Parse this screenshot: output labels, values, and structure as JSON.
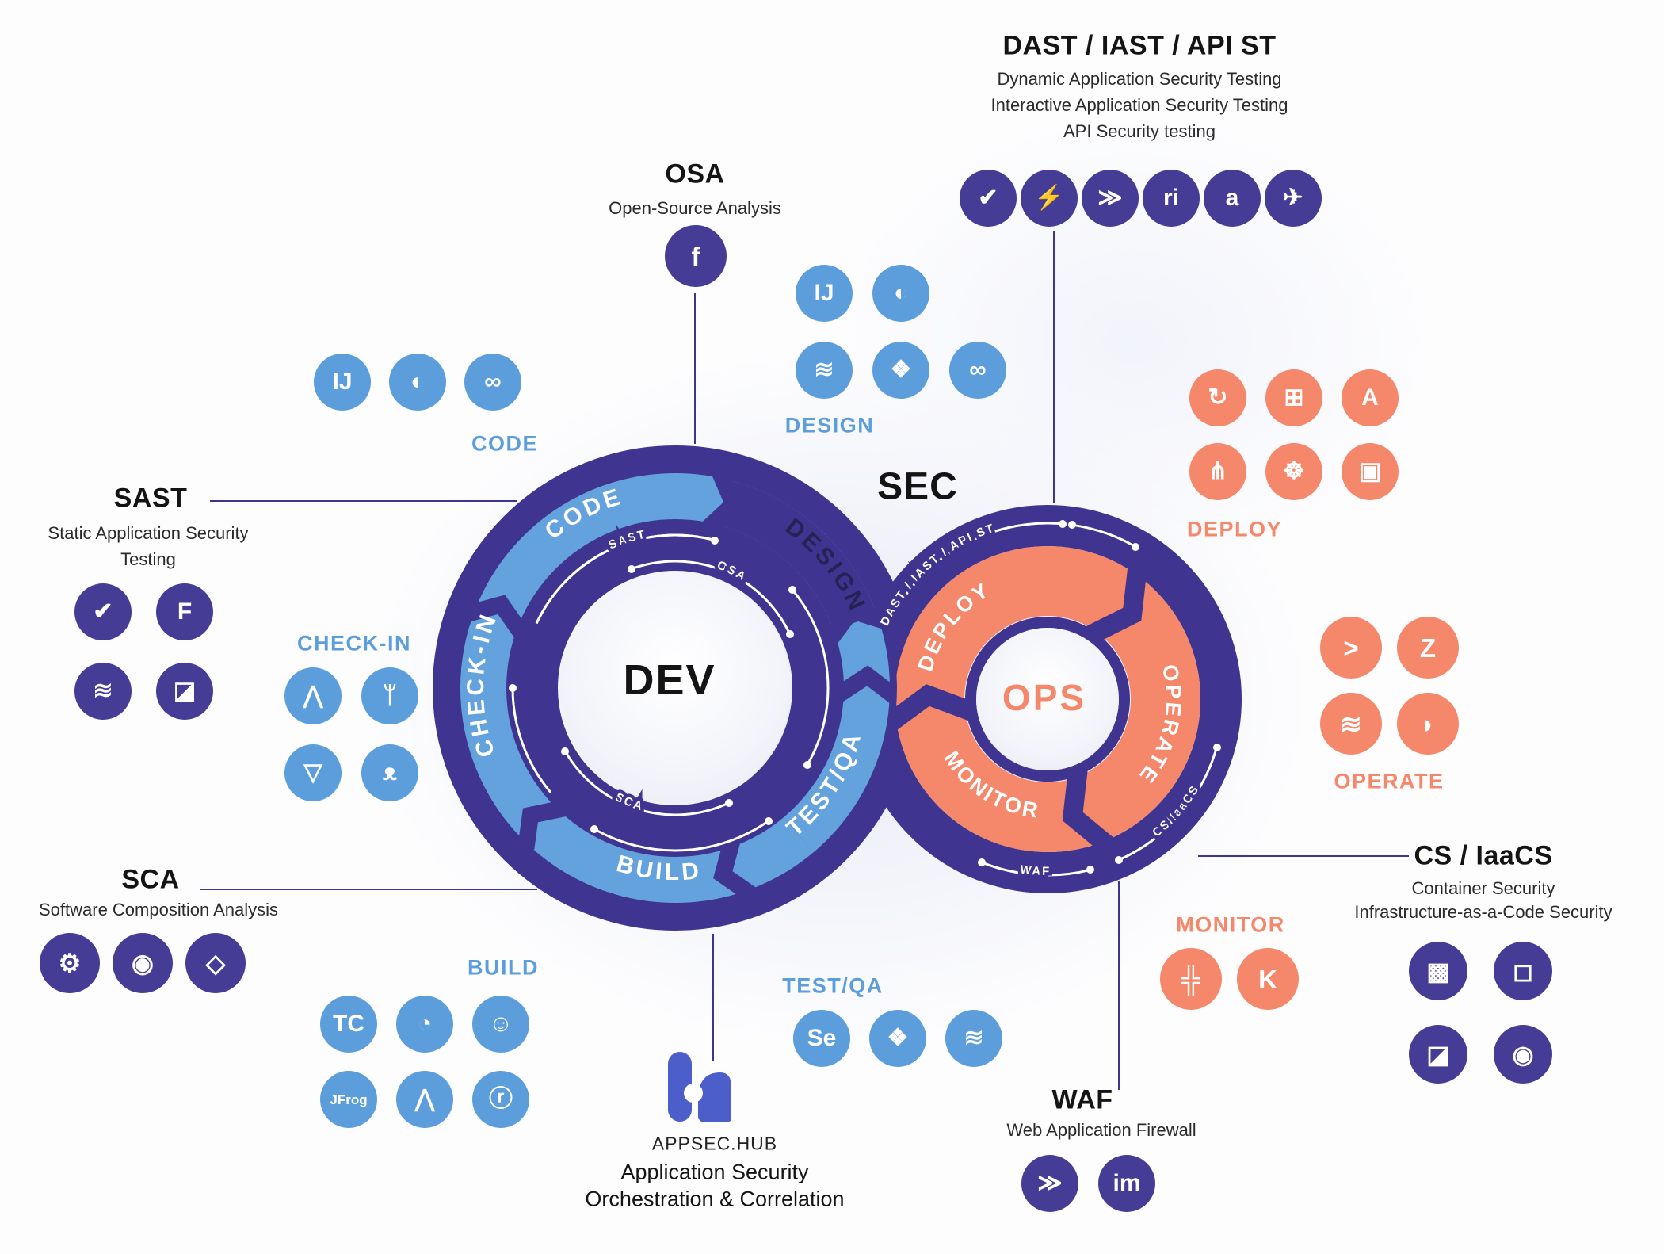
{
  "colors": {
    "purple": "#3F3590",
    "light_blue": "#64A2DE",
    "icon_blue": "#5C9EDC",
    "salmon": "#F5876B",
    "ink": "#141414",
    "hub_blue": "#4C5EC9"
  },
  "center": {
    "sec": "SEC",
    "dev": "DEV",
    "ops": "OPS"
  },
  "rings": {
    "dev": {
      "segments": {
        "code": "CODE",
        "design": "DESIGN",
        "checkin": "CHECK-IN",
        "build": "BUILD",
        "testqa": "TEST/QA"
      },
      "circuit": {
        "sast": "SAST",
        "osa": "OSA",
        "sca": "SCA"
      }
    },
    "ops": {
      "segments": {
        "deploy": "DEPLOY",
        "operate": "OPERATE",
        "monitor": "MONITOR"
      },
      "circuit": {
        "dast": "DAST / IAST / API ST",
        "cs": "CS/IaaCS",
        "waf": "WAF"
      }
    }
  },
  "sections": {
    "dast": {
      "title": "DAST / IAST / API ST",
      "lines": [
        "Dynamic Application Security Testing",
        "Interactive Application Security Testing",
        "API Security testing"
      ]
    },
    "osa": {
      "title": "OSA",
      "subtitle": "Open-Source Analysis"
    },
    "sast": {
      "title": "SAST",
      "lines": [
        "Static Application Security",
        "Testing"
      ]
    },
    "sca": {
      "title": "SCA",
      "subtitle": "Software Composition Analysis"
    },
    "waf": {
      "title": "WAF",
      "subtitle": "Web Application Firewall"
    },
    "cs": {
      "title": "CS / IaaCS",
      "lines": [
        "Container Security",
        "Infrastructure-as-a-Code Security"
      ]
    },
    "appsechub": {
      "title": "APPSEC.HUB",
      "lines": [
        "Application Security",
        "Orchestration & Correlation"
      ]
    }
  },
  "cluster_labels": {
    "code": "CODE",
    "design": "DESIGN",
    "checkin": "CHECK-IN",
    "build": "BUILD",
    "testqa": "TEST/QA",
    "deploy": "DEPLOY",
    "operate": "OPERATE",
    "monitor": "MONITOR"
  },
  "icon_clusters": {
    "code": {
      "color": "#5C9EDC",
      "size": 72,
      "icons": [
        {
          "name": "intellij-idea",
          "glyph": "IJ"
        },
        {
          "name": "eclipse",
          "glyph": "◐"
        },
        {
          "name": "visual-studio",
          "glyph": "∞"
        }
      ]
    },
    "design_top": {
      "color": "#5C9EDC",
      "size": 72,
      "icons": [
        {
          "name": "intellij-idea",
          "glyph": "IJ"
        },
        {
          "name": "eclipse",
          "glyph": "◐"
        }
      ]
    },
    "design_bottom": {
      "color": "#5C9EDC",
      "size": 72,
      "icons": [
        {
          "name": "confluence",
          "glyph": "≋"
        },
        {
          "name": "jira",
          "glyph": "❖"
        },
        {
          "name": "visual-studio",
          "glyph": "∞"
        }
      ]
    },
    "dast": {
      "color": "#453C96",
      "size": 72,
      "icons": [
        {
          "name": "checkmarx",
          "glyph": "✔"
        },
        {
          "name": "lightning-scanner",
          "glyph": "⚡"
        },
        {
          "name": "wallarm",
          "glyph": "≫"
        },
        {
          "name": "ri-scanner",
          "glyph": "ri"
        },
        {
          "name": "a-scanner",
          "glyph": "a"
        },
        {
          "name": "kite-scanner",
          "glyph": "✈"
        }
      ]
    },
    "osa": {
      "color": "#453C96",
      "size": 78,
      "icons": [
        {
          "name": "fossa",
          "glyph": "f"
        }
      ]
    },
    "sast": {
      "color": "#453C96",
      "size": 72,
      "icons": [
        {
          "name": "checkmarx",
          "glyph": "✔"
        },
        {
          "name": "fortify",
          "glyph": "F"
        },
        {
          "name": "arc-scanner",
          "glyph": "≋"
        },
        {
          "name": "fold-scanner",
          "glyph": "◪"
        }
      ]
    },
    "checkin": {
      "color": "#5C9EDC",
      "size": 72,
      "icons": [
        {
          "name": "gitlab",
          "glyph": "⋀"
        },
        {
          "name": "git",
          "glyph": "ᛘ"
        },
        {
          "name": "bitbucket",
          "glyph": "▽"
        },
        {
          "name": "github",
          "glyph": "ᴥ"
        }
      ]
    },
    "sca": {
      "color": "#453C96",
      "size": 76,
      "icons": [
        {
          "name": "dependency-check",
          "glyph": "⚙"
        },
        {
          "name": "swirl-ring",
          "glyph": "◉"
        },
        {
          "name": "hex-lock",
          "glyph": "◇"
        }
      ]
    },
    "build": {
      "color": "#5C9EDC",
      "size": 72,
      "icons": [
        {
          "name": "teamcity",
          "glyph": "TC"
        },
        {
          "name": "pie-ci",
          "glyph": "◔"
        },
        {
          "name": "jenkins",
          "glyph": "☺"
        },
        {
          "name": "jfrog",
          "glyph": "JFrog"
        },
        {
          "name": "gitlab",
          "glyph": "⋀"
        },
        {
          "name": "hex-r-registry",
          "glyph": "ⓡ"
        }
      ]
    },
    "testqa": {
      "color": "#5C9EDC",
      "size": 72,
      "icons": [
        {
          "name": "selenium",
          "glyph": "Se"
        },
        {
          "name": "jira",
          "glyph": "❖"
        },
        {
          "name": "confluence",
          "glyph": "≋"
        }
      ]
    },
    "deploy": {
      "color": "#F5876B",
      "size": 72,
      "icons": [
        {
          "name": "openshift",
          "glyph": "↻"
        },
        {
          "name": "docker",
          "glyph": "⊞"
        },
        {
          "name": "ansible",
          "glyph": "A"
        },
        {
          "name": "pipeline-connector",
          "glyph": "⋔"
        },
        {
          "name": "kubernetes",
          "glyph": "☸"
        },
        {
          "name": "stacked-squares",
          "glyph": "▣"
        }
      ]
    },
    "operate": {
      "color": "#F5876B",
      "size": 78,
      "icons": [
        {
          "name": "splunk",
          "glyph": ">"
        },
        {
          "name": "zabbix",
          "glyph": "Z"
        },
        {
          "name": "arc-scanner",
          "glyph": "≋"
        },
        {
          "name": "leaf-block",
          "glyph": "◗"
        }
      ]
    },
    "monitor": {
      "color": "#F5876B",
      "size": 78,
      "icons": [
        {
          "name": "tableau",
          "glyph": "╬"
        },
        {
          "name": "kibana",
          "glyph": "K"
        }
      ]
    },
    "waf": {
      "color": "#453C96",
      "size": 72,
      "icons": [
        {
          "name": "wallarm",
          "glyph": "≫"
        },
        {
          "name": "imperva",
          "glyph": "im"
        }
      ]
    },
    "cs": {
      "color": "#453C96",
      "size": 74,
      "icons": [
        {
          "name": "cube-cluster",
          "glyph": "▩"
        },
        {
          "name": "cube-scanner",
          "glyph": "◻"
        },
        {
          "name": "fold-scanner",
          "glyph": "◪"
        },
        {
          "name": "globe-eye",
          "glyph": "◉"
        }
      ]
    }
  }
}
